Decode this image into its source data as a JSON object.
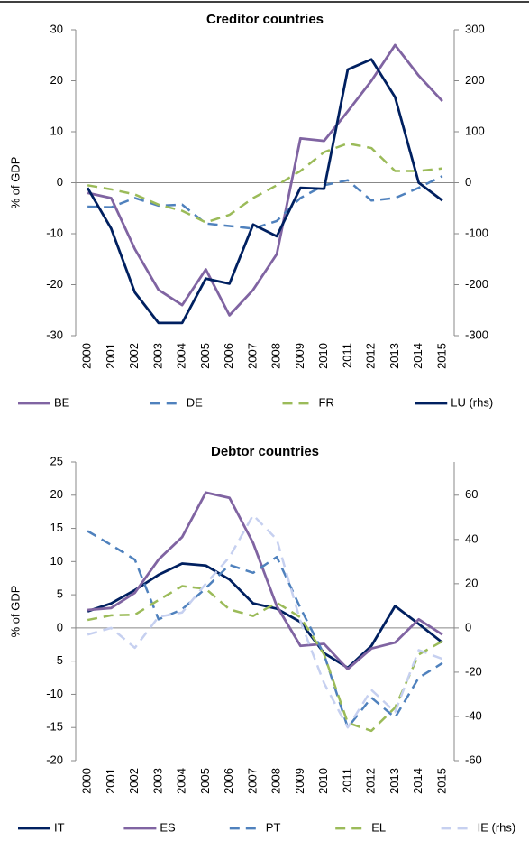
{
  "chart_data": [
    {
      "type": "line",
      "title": "Creditor countries",
      "ylabel": "% of GDP",
      "categories": [
        "2000",
        "2001",
        "2002",
        "2003",
        "2004",
        "2005",
        "2006",
        "2007",
        "2008",
        "2009",
        "2010",
        "2011",
        "2012",
        "2013",
        "2014",
        "2015"
      ],
      "ylim": [
        -30,
        30
      ],
      "yticks": [
        -30,
        -20,
        -10,
        0,
        10,
        20,
        30
      ],
      "y2lim": [
        -300,
        300
      ],
      "y2ticks": [
        -300,
        -200,
        -100,
        0,
        100,
        200,
        300
      ],
      "series": [
        {
          "name": "BE",
          "color": "#8064a2",
          "dashed": false,
          "values": [
            -2,
            -3,
            -13,
            -21,
            -24,
            -17,
            -26,
            -21,
            -14,
            8.7,
            8.2,
            14,
            20,
            27,
            21,
            16
          ]
        },
        {
          "name": "DE",
          "color": "#4f81bd",
          "dashed": true,
          "values": [
            -4.7,
            -4.8,
            -3,
            -4.5,
            -4.3,
            -8,
            -8.5,
            -9,
            -7.5,
            -3,
            -0.5,
            0.5,
            -3.5,
            -3,
            -1,
            1.3
          ]
        },
        {
          "name": "FR",
          "color": "#9bbb59",
          "dashed": true,
          "values": [
            -0.5,
            -1.3,
            -2.3,
            -4.3,
            -5.5,
            -7.8,
            -6.3,
            -3,
            -0.5,
            2.3,
            6,
            7.7,
            6.8,
            2.3,
            2.3,
            2.8
          ]
        },
        {
          "name": "LU (rhs)",
          "color": "#002060",
          "dashed": false,
          "axis": "y2",
          "values": [
            -10,
            -90,
            -215,
            -275,
            -275,
            -188,
            -198,
            -82,
            -105,
            -10,
            -12,
            222,
            242,
            168,
            0,
            -35
          ]
        }
      ]
    },
    {
      "type": "line",
      "title": "Debtor countries",
      "ylabel": "% of GDP",
      "categories": [
        "2000",
        "2001",
        "2002",
        "2003",
        "2004",
        "2005",
        "2006",
        "2007",
        "2008",
        "2009",
        "2010",
        "2011",
        "2012",
        "2013",
        "2014",
        "2015"
      ],
      "ylim": [
        -20,
        25
      ],
      "yticks": [
        -20,
        -15,
        -10,
        -5,
        0,
        5,
        10,
        15,
        20,
        25
      ],
      "y2lim": [
        -60,
        75
      ],
      "y2ticks": [
        -60,
        -40,
        -20,
        0,
        20,
        40,
        60
      ],
      "series": [
        {
          "name": "IT",
          "color": "#002060",
          "dashed": false,
          "values": [
            2.5,
            3.7,
            5.7,
            8,
            9.7,
            9.4,
            7.3,
            3.7,
            2.9,
            0.9,
            -3.8,
            -6,
            -2.7,
            3.3,
            0.6,
            -2.2
          ]
        },
        {
          "name": "ES",
          "color": "#8064a2",
          "dashed": false,
          "values": [
            2.7,
            3,
            5.3,
            10.3,
            13.7,
            20.4,
            19.6,
            12.8,
            3.3,
            -2.7,
            -2.4,
            -6.2,
            -3.1,
            -2.2,
            1.3,
            -1
          ]
        },
        {
          "name": "PT",
          "color": "#4f81bd",
          "dashed": true,
          "values": [
            14.6,
            12.5,
            10.3,
            1.3,
            2.8,
            6,
            9.5,
            8.3,
            10.7,
            3,
            -4,
            -15,
            -10.5,
            -13.5,
            -7.5,
            -5.3
          ]
        },
        {
          "name": "EL",
          "color": "#9bbb59",
          "dashed": true,
          "values": [
            1.2,
            1.9,
            2,
            4.2,
            6.3,
            5.9,
            2.8,
            1.8,
            3.8,
            1.6,
            -4,
            -14.3,
            -15.5,
            -12,
            -4,
            -2
          ]
        },
        {
          "name": "IE (rhs)",
          "color": "#c6d0f0",
          "dashed": true,
          "axis": "y2",
          "values": [
            -3,
            0,
            -9,
            5,
            7,
            20,
            32,
            51,
            40,
            3,
            -25,
            -45,
            -28,
            -38,
            -10,
            -14
          ]
        }
      ]
    }
  ]
}
